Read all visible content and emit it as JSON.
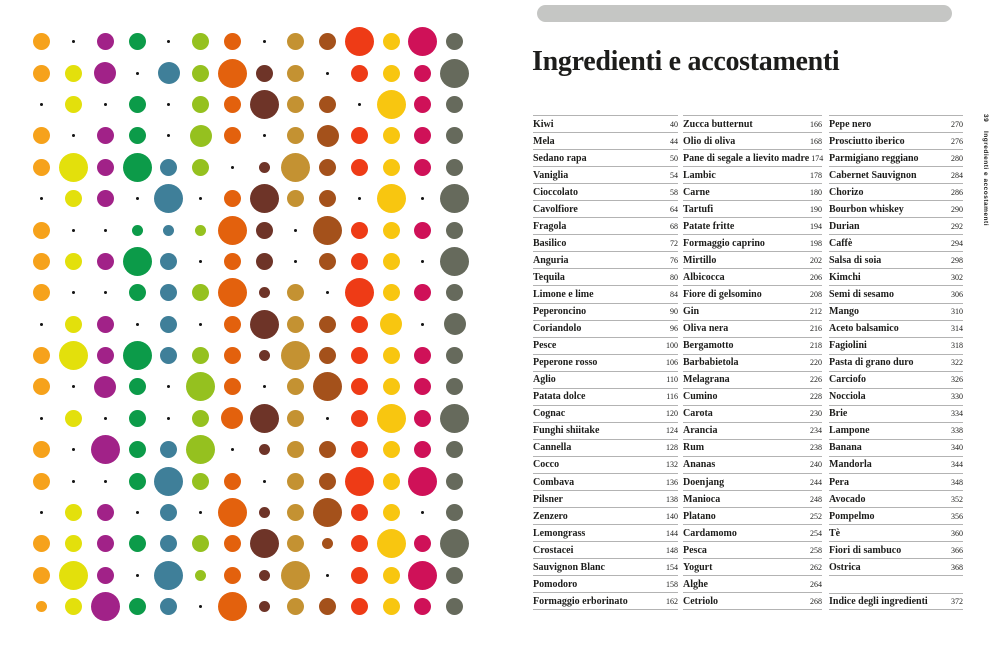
{
  "page": {
    "title": "Ingredienti e accostamenti",
    "folio": "39",
    "sidebar_vertical_text": "Ingredienti e accostamenti",
    "tab_color": "#c5c6c4",
    "rule_color": "#b3b3b3"
  },
  "dot_grid": {
    "column_colors": [
      "#F6A21B",
      "#E3E00C",
      "#A12288",
      "#0C9B49",
      "#3F7F99",
      "#95C11F",
      "#E3610D",
      "#6E3428",
      "#C49232",
      "#A4511B",
      "#EE3B16",
      "#F8C610",
      "#CF1158",
      "#666A5C"
    ],
    "tiny_color": "#141414",
    "sizes": {
      "t": 3,
      "s": 11,
      "m": 17,
      "l": 22,
      "x": 29
    },
    "rows": [
      "mtmmtmmtmmxmxm",
      "mmltlmxmmtmmmx",
      "tmtmtmmxmmtxmm",
      "mtmmtlmtmlmmmm",
      "mxmxmmtsxmmmmm",
      "tmmtxtmxmmtxtx",
      "mttsssxmtxmmmm",
      "mmmxmtmmtmmmtx",
      "mttmmmxsmtxmmm",
      "tmmtmtmxmmmltl",
      "mxmxmmmsxmmmmm",
      "mtlmtxmtmxmmmm",
      "tmtmtmlxmtmxmx",
      "mtxmmxtsmmmmmm",
      "mttmxmmtmmxmxm",
      "tmmtmtxsmxmmtm",
      "mmmmmmmxmsmxmx",
      "mxmtxsmsxtmmxm",
      "smxmmtxsmmmmmm"
    ]
  },
  "index": {
    "columns": [
      {
        "entries": [
          {
            "label": "Kiwi",
            "page": "40"
          },
          {
            "label": "Mela",
            "page": "44"
          },
          {
            "label": "Sedano rapa",
            "page": "50"
          },
          {
            "label": "Vaniglia",
            "page": "54"
          },
          {
            "label": "Cioccolato",
            "page": "58"
          },
          {
            "label": "Cavolfiore",
            "page": "64"
          },
          {
            "label": "Fragola",
            "page": "68"
          },
          {
            "label": "Basilico",
            "page": "72"
          },
          {
            "label": "Anguria",
            "page": "76"
          },
          {
            "label": "Tequila",
            "page": "80"
          },
          {
            "label": "Limone e lime",
            "page": "84"
          },
          {
            "label": "Peperoncino",
            "page": "90"
          },
          {
            "label": "Coriandolo",
            "page": "96"
          },
          {
            "label": "Pesce",
            "page": "100"
          },
          {
            "label": "Peperone rosso",
            "page": "106"
          },
          {
            "label": "Aglio",
            "page": "110"
          },
          {
            "label": "Patata dolce",
            "page": "116"
          },
          {
            "label": "Cognac",
            "page": "120"
          },
          {
            "label": "Funghi shiitake",
            "page": "124"
          },
          {
            "label": "Cannella",
            "page": "128"
          },
          {
            "label": "Cocco",
            "page": "132"
          },
          {
            "label": "Combava",
            "page": "136"
          },
          {
            "label": "Pilsner",
            "page": "138"
          },
          {
            "label": "Zenzero",
            "page": "140"
          },
          {
            "label": "Lemongrass",
            "page": "144"
          },
          {
            "label": "Crostacei",
            "page": "148"
          },
          {
            "label": "Sauvignon Blanc",
            "page": "154"
          },
          {
            "label": "Pomodoro",
            "page": "158"
          },
          {
            "label": "Formaggio erborinato",
            "page": "162"
          }
        ]
      },
      {
        "entries": [
          {
            "label": "Zucca butternut",
            "page": "166"
          },
          {
            "label": "Olio di oliva",
            "page": "168"
          },
          {
            "label": "Pane di segale a lievito madre",
            "page": "174"
          },
          {
            "label": "Lambic",
            "page": "178"
          },
          {
            "label": "Carne",
            "page": "180"
          },
          {
            "label": "Tartufi",
            "page": "190"
          },
          {
            "label": "Patate fritte",
            "page": "194"
          },
          {
            "label": "Formaggio caprino",
            "page": "198"
          },
          {
            "label": "Mirtillo",
            "page": "202"
          },
          {
            "label": "Albicocca",
            "page": "206"
          },
          {
            "label": "Fiore di gelsomino",
            "page": "208"
          },
          {
            "label": "Gin",
            "page": "212"
          },
          {
            "label": "Oliva nera",
            "page": "216"
          },
          {
            "label": "Bergamotto",
            "page": "218"
          },
          {
            "label": "Barbabietola",
            "page": "220"
          },
          {
            "label": "Melagrana",
            "page": "226"
          },
          {
            "label": "Cumino",
            "page": "228"
          },
          {
            "label": "Carota",
            "page": "230"
          },
          {
            "label": "Arancia",
            "page": "234"
          },
          {
            "label": "Rum",
            "page": "238"
          },
          {
            "label": "Ananas",
            "page": "240"
          },
          {
            "label": "Doenjang",
            "page": "244"
          },
          {
            "label": "Manioca",
            "page": "248"
          },
          {
            "label": "Platano",
            "page": "252"
          },
          {
            "label": "Cardamomo",
            "page": "254"
          },
          {
            "label": "Pesca",
            "page": "258"
          },
          {
            "label": "Yogurt",
            "page": "262"
          },
          {
            "label": "Alghe",
            "page": "264"
          },
          {
            "label": "Cetriolo",
            "page": "268"
          }
        ]
      },
      {
        "entries": [
          {
            "label": "Pepe nero",
            "page": "270"
          },
          {
            "label": "Prosciutto iberico",
            "page": "276"
          },
          {
            "label": "Parmigiano reggiano",
            "page": "280"
          },
          {
            "label": "Cabernet Sauvignon",
            "page": "284"
          },
          {
            "label": "Chorizo",
            "page": "286"
          },
          {
            "label": "Bourbon whiskey",
            "page": "290"
          },
          {
            "label": "Durian",
            "page": "292"
          },
          {
            "label": "Caffè",
            "page": "294"
          },
          {
            "label": "Salsa di soia",
            "page": "298"
          },
          {
            "label": "Kimchi",
            "page": "302"
          },
          {
            "label": "Semi di sesamo",
            "page": "306"
          },
          {
            "label": "Mango",
            "page": "310"
          },
          {
            "label": "Aceto balsamico",
            "page": "314"
          },
          {
            "label": "Fagiolini",
            "page": "318"
          },
          {
            "label": "Pasta di grano duro",
            "page": "322"
          },
          {
            "label": "Carciofo",
            "page": "326"
          },
          {
            "label": "Nocciola",
            "page": "330"
          },
          {
            "label": "Brie",
            "page": "334"
          },
          {
            "label": "Lampone",
            "page": "338"
          },
          {
            "label": "Banana",
            "page": "340"
          },
          {
            "label": "Mandorla",
            "page": "344"
          },
          {
            "label": "Pera",
            "page": "348"
          },
          {
            "label": "Avocado",
            "page": "352"
          },
          {
            "label": "Pompelmo",
            "page": "356"
          },
          {
            "label": "Tè",
            "page": "360"
          },
          {
            "label": "Fiori di sambuco",
            "page": "366"
          },
          {
            "label": "Ostrica",
            "page": "368"
          }
        ],
        "footer": {
          "label": "Indice degli ingredienti",
          "page": "372"
        }
      }
    ]
  }
}
